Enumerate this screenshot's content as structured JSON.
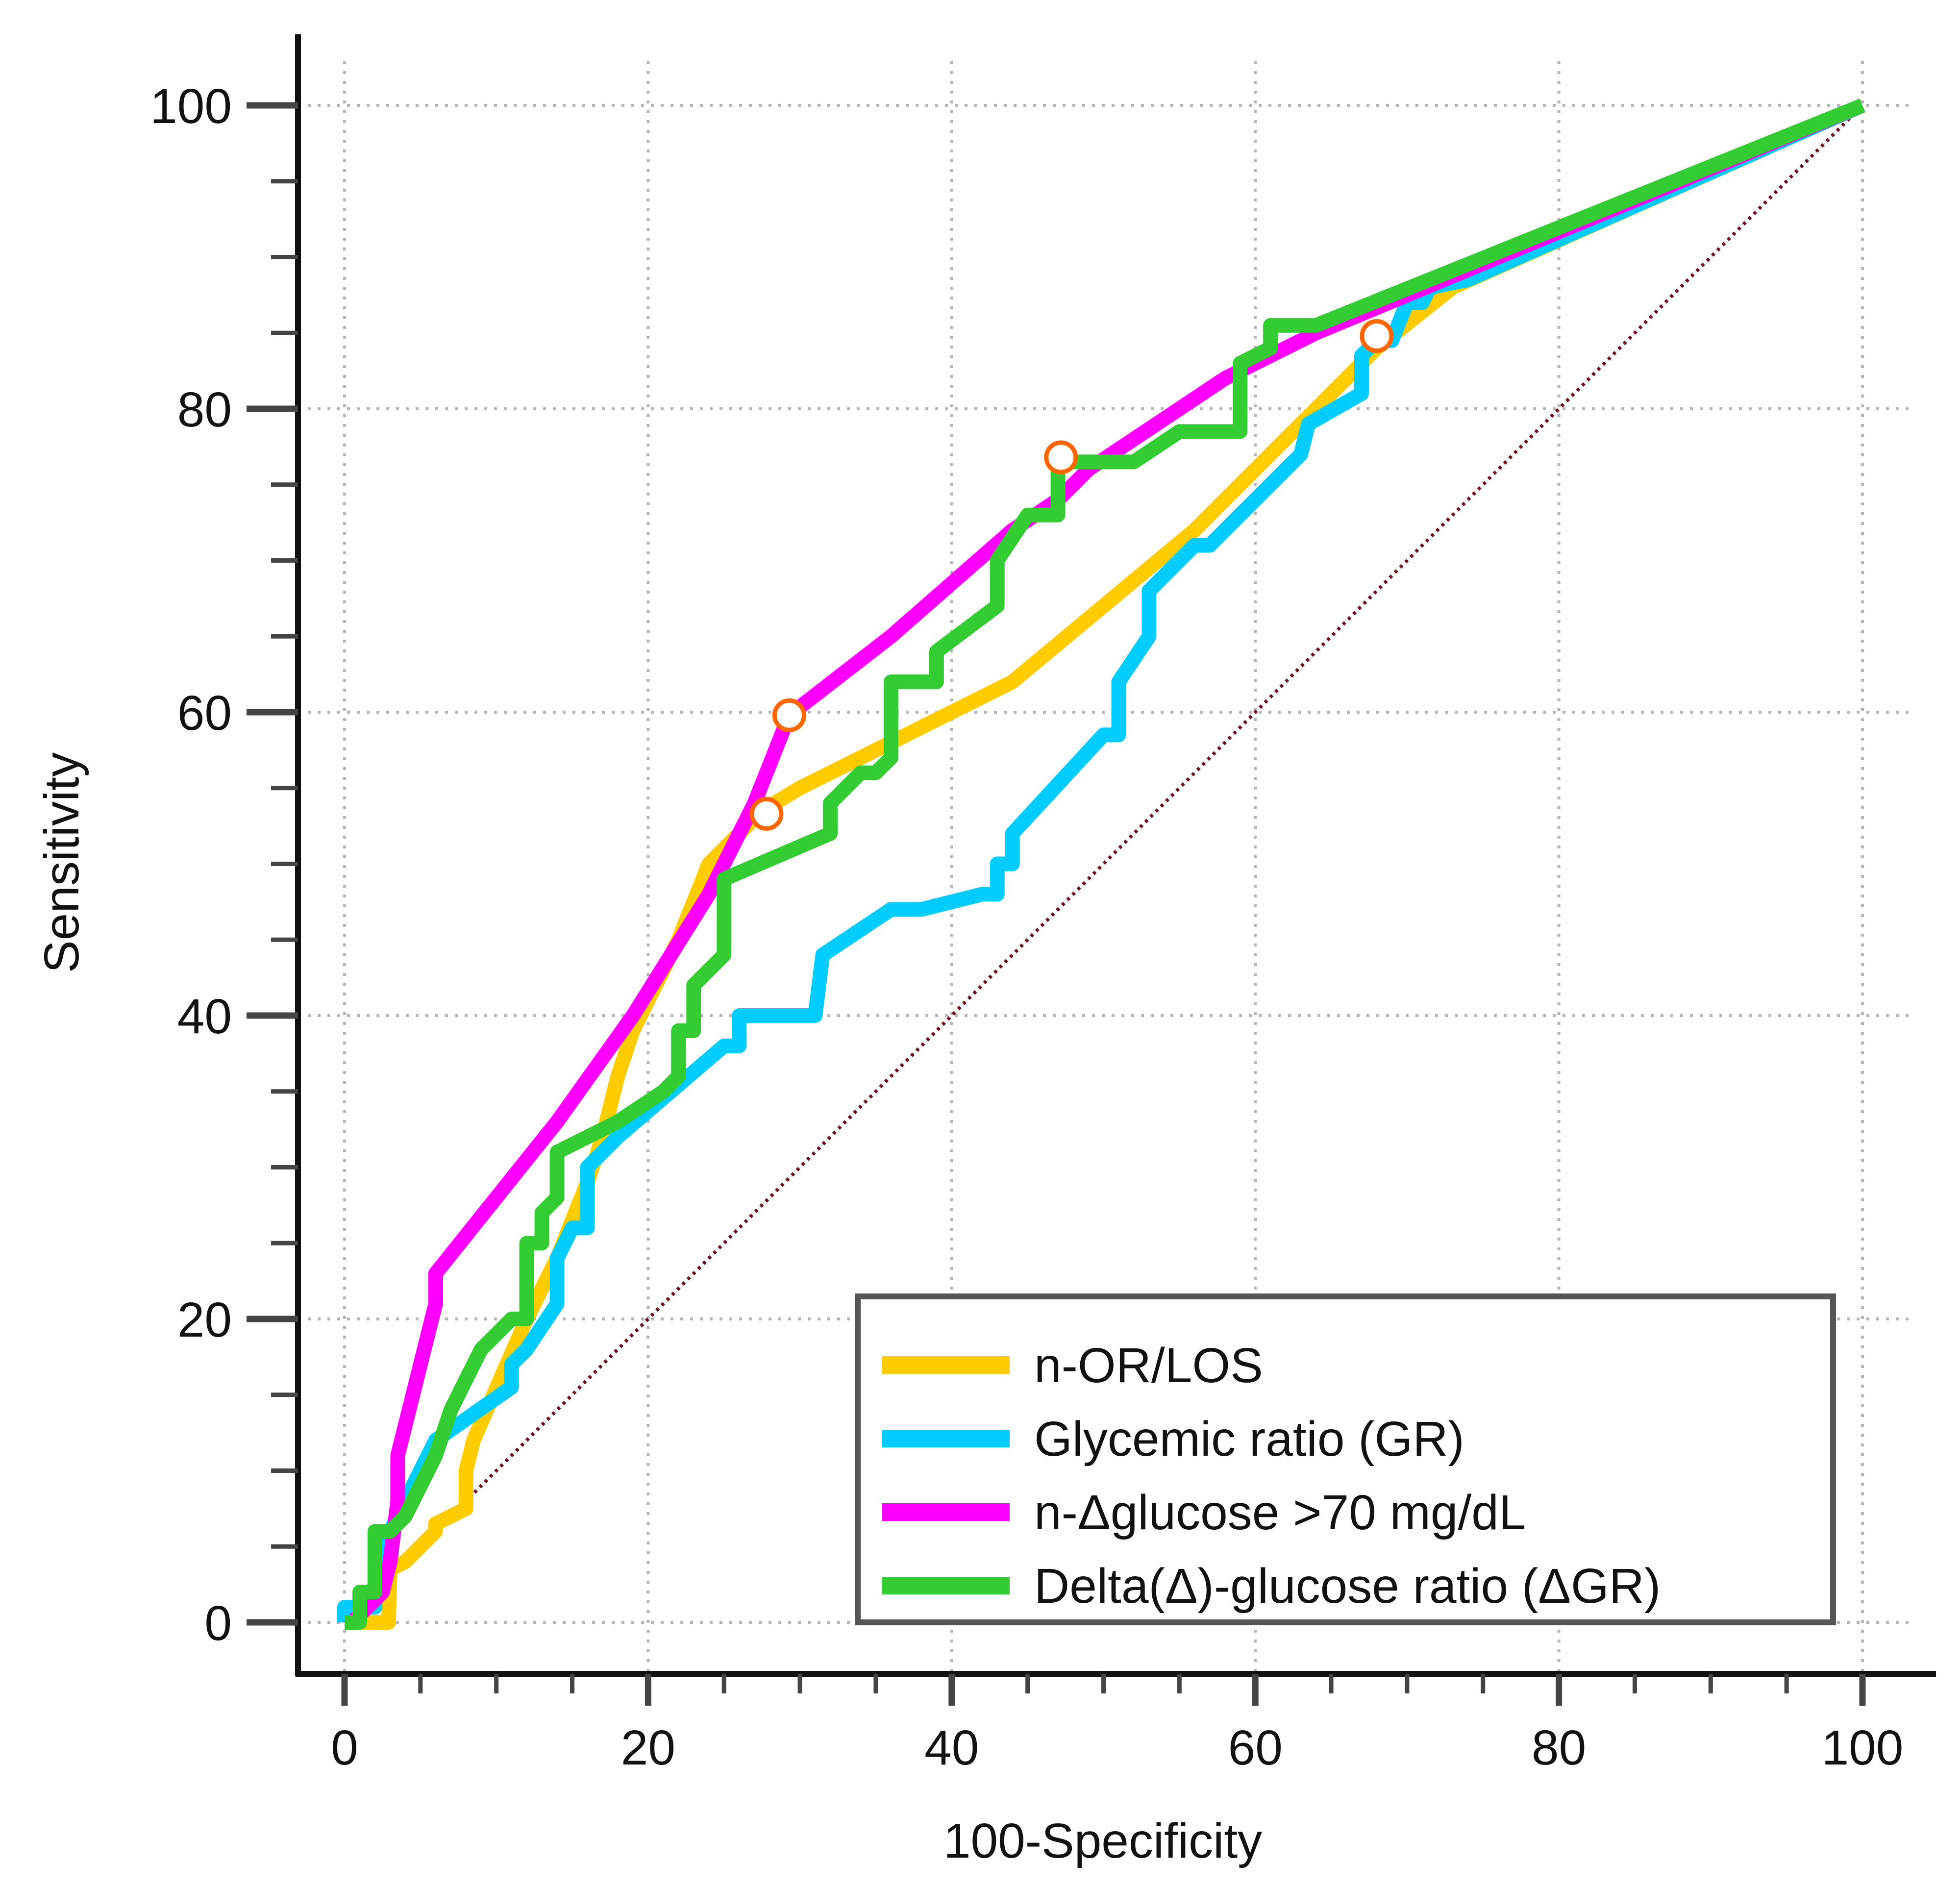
{
  "chart_data": {
    "type": "line",
    "title": "",
    "xlabel": "100-Specificity",
    "ylabel": "Sensitivity",
    "xlim": [
      0,
      100
    ],
    "ylim": [
      0,
      100
    ],
    "x_ticks": [
      0,
      20,
      40,
      60,
      80,
      100
    ],
    "y_ticks": [
      0,
      20,
      40,
      60,
      80,
      100
    ],
    "grid": true,
    "legend_position": "bottom-right",
    "reference_line": {
      "from": [
        0,
        0
      ],
      "to": [
        100,
        100
      ],
      "style": "dotted",
      "color": "#6b0f1a"
    },
    "series": [
      {
        "name": "n-OR/LOS",
        "color": "#ffcc00",
        "points": [
          [
            0,
            0
          ],
          [
            2.9,
            0
          ],
          [
            3,
            3.5
          ],
          [
            4,
            4
          ],
          [
            6,
            6
          ],
          [
            6,
            6.5
          ],
          [
            8,
            7.5
          ],
          [
            8,
            10
          ],
          [
            8.5,
            12
          ],
          [
            12,
            20
          ],
          [
            14,
            24
          ],
          [
            16,
            29
          ],
          [
            17,
            32
          ],
          [
            18,
            36
          ],
          [
            19,
            39
          ],
          [
            22,
            45
          ],
          [
            24,
            50
          ],
          [
            26,
            52
          ],
          [
            27.5,
            53.5
          ],
          [
            30,
            55
          ],
          [
            36,
            58
          ],
          [
            44,
            62
          ],
          [
            50,
            67
          ],
          [
            56,
            72
          ],
          [
            62,
            78
          ],
          [
            68,
            84
          ],
          [
            73,
            88
          ],
          [
            100,
            100
          ]
        ],
        "cutoff": [
          27.8,
          53.3
        ]
      },
      {
        "name": "Glycemic ratio (GR)",
        "color": "#00ccff",
        "points": [
          [
            0,
            0
          ],
          [
            0,
            1
          ],
          [
            2,
            1
          ],
          [
            2,
            4
          ],
          [
            3,
            6
          ],
          [
            6,
            12
          ],
          [
            11,
            15.5
          ],
          [
            11,
            17
          ],
          [
            12,
            18
          ],
          [
            14,
            21
          ],
          [
            14,
            24
          ],
          [
            15,
            26
          ],
          [
            16,
            26
          ],
          [
            16,
            30
          ],
          [
            18,
            32
          ],
          [
            25,
            38
          ],
          [
            26,
            38
          ],
          [
            26,
            40
          ],
          [
            31,
            40
          ],
          [
            31.5,
            44
          ],
          [
            36,
            47
          ],
          [
            38,
            47
          ],
          [
            42,
            48
          ],
          [
            43,
            48
          ],
          [
            43,
            50
          ],
          [
            44,
            50
          ],
          [
            44,
            52
          ],
          [
            50,
            58.5
          ],
          [
            51,
            58.5
          ],
          [
            51,
            62
          ],
          [
            53,
            65
          ],
          [
            53,
            68
          ],
          [
            56,
            71
          ],
          [
            57,
            71
          ],
          [
            63,
            77
          ],
          [
            63.5,
            79
          ],
          [
            67,
            81
          ],
          [
            67,
            83.5
          ],
          [
            68,
            84.5
          ],
          [
            69,
            84.5
          ],
          [
            70,
            87
          ],
          [
            71,
            87
          ],
          [
            71.5,
            88
          ],
          [
            74,
            88.5
          ],
          [
            100,
            100
          ]
        ]
      },
      {
        "name": "n-Δglucose >70 mg/dL",
        "color": "#ff00ff",
        "points": [
          [
            0.5,
            0
          ],
          [
            2.5,
            2
          ],
          [
            3,
            4
          ],
          [
            3.5,
            8
          ],
          [
            3.5,
            11
          ],
          [
            6,
            21
          ],
          [
            6,
            23
          ],
          [
            14,
            33
          ],
          [
            19,
            40
          ],
          [
            24,
            48
          ],
          [
            27,
            54
          ],
          [
            29.3,
            59.8
          ],
          [
            36,
            65
          ],
          [
            44,
            72
          ],
          [
            47,
            74
          ],
          [
            49,
            76
          ],
          [
            58,
            82
          ],
          [
            64,
            85
          ],
          [
            100,
            100
          ]
        ],
        "cutoff": [
          29.3,
          59.8
        ]
      },
      {
        "name": "Delta(Δ)-glucose ratio (ΔGR)",
        "color": "#33cc33",
        "points": [
          [
            0,
            0
          ],
          [
            1,
            0
          ],
          [
            1,
            2
          ],
          [
            2,
            2
          ],
          [
            2,
            6
          ],
          [
            3,
            6
          ],
          [
            4,
            7
          ],
          [
            5,
            9
          ],
          [
            6,
            11
          ],
          [
            7,
            14
          ],
          [
            9,
            18
          ],
          [
            11,
            20
          ],
          [
            12,
            20
          ],
          [
            12,
            25
          ],
          [
            13,
            25
          ],
          [
            13,
            27
          ],
          [
            14,
            28
          ],
          [
            14,
            31
          ],
          [
            18,
            33
          ],
          [
            21,
            35
          ],
          [
            22,
            36
          ],
          [
            22,
            39
          ],
          [
            23,
            39
          ],
          [
            23,
            42
          ],
          [
            25,
            44
          ],
          [
            25,
            49
          ],
          [
            32,
            52
          ],
          [
            32,
            54
          ],
          [
            34,
            56
          ],
          [
            35,
            56
          ],
          [
            36,
            57
          ],
          [
            36,
            62
          ],
          [
            39,
            62
          ],
          [
            39,
            64
          ],
          [
            43,
            67
          ],
          [
            43,
            70
          ],
          [
            45,
            73
          ],
          [
            47,
            73
          ],
          [
            47,
            76.5
          ],
          [
            52,
            76.5
          ],
          [
            55,
            78.5
          ],
          [
            59,
            78.5
          ],
          [
            59,
            83
          ],
          [
            61,
            84
          ],
          [
            61,
            85.5
          ],
          [
            64,
            85.5
          ],
          [
            100,
            100
          ]
        ],
        "cutoffs": [
          [
            47.2,
            76.8
          ],
          [
            68.0,
            84.8
          ]
        ]
      }
    ],
    "cutoff_marker_color": "#ff6600"
  }
}
